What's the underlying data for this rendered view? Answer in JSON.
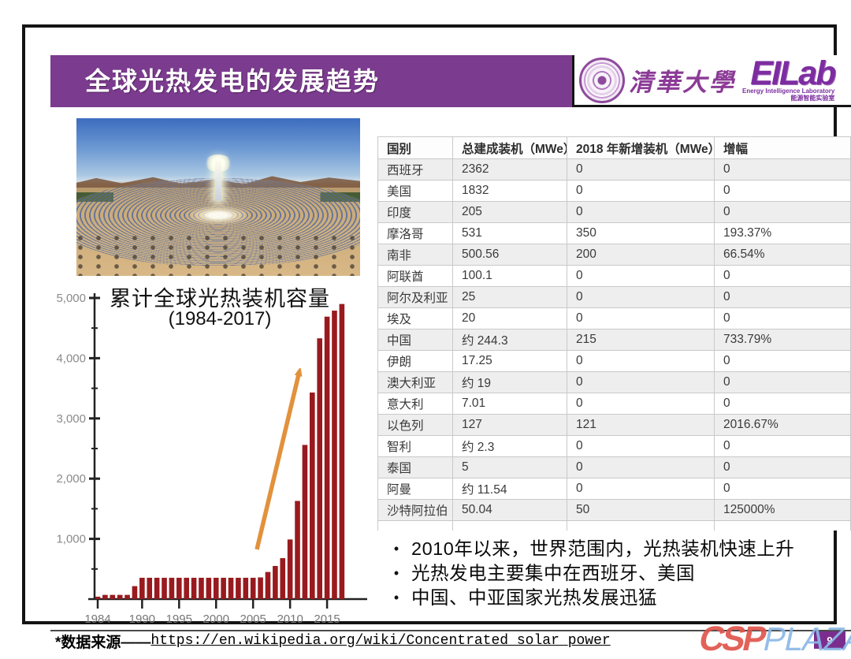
{
  "header": {
    "title": "全球光热发电的发展趋势"
  },
  "logos": {
    "university": "清華大學",
    "lab": "EILab",
    "lab_tagline": "Energy Intelligence Laboratory",
    "lab_tagline_cn": "能源智能实验室"
  },
  "chart_data": {
    "type": "bar",
    "title": "累计全球光热装机容量",
    "subtitle": "(1984-2017)",
    "years": [
      1984,
      1985,
      1986,
      1987,
      1988,
      1989,
      1990,
      1991,
      1992,
      1993,
      1994,
      1995,
      1996,
      1997,
      1998,
      1999,
      2000,
      2001,
      2002,
      2003,
      2004,
      2005,
      2006,
      2007,
      2008,
      2009,
      2010,
      2011,
      2012,
      2013,
      2014,
      2015,
      2016,
      2017
    ],
    "values": [
      40,
      70,
      70,
      70,
      70,
      215,
      354,
      354,
      354,
      354,
      354,
      354,
      354,
      354,
      354,
      354,
      354,
      354,
      354,
      354,
      354,
      354,
      360,
      450,
      550,
      680,
      990,
      1630,
      2560,
      3430,
      4330,
      4690,
      4790,
      4900
    ],
    "ylim": [
      0,
      5000
    ],
    "ytick_labels": [
      "1,000",
      "2,000",
      "3,000",
      "4,000",
      "5,000"
    ],
    "xticks": [
      1984,
      1990,
      1995,
      2000,
      2005,
      2010,
      2015
    ],
    "xlabel": "",
    "ylabel": "",
    "grid": false,
    "legend": "none",
    "bar_color": "#991a1e",
    "arrow_color": "#e2913c"
  },
  "table": {
    "headers": [
      "国别",
      "总建成装机（MWe）",
      "2018 年新增装机（MWe）",
      "增幅"
    ],
    "rows": [
      [
        "西班牙",
        "2362",
        "0",
        "0"
      ],
      [
        "美国",
        "1832",
        "0",
        "0"
      ],
      [
        "印度",
        "205",
        "0",
        "0"
      ],
      [
        "摩洛哥",
        "531",
        "350",
        "193.37%"
      ],
      [
        "南非",
        "500.56",
        "200",
        "66.54%"
      ],
      [
        "阿联酋",
        "100.1",
        "0",
        "0"
      ],
      [
        "阿尔及利亚",
        "25",
        "0",
        "0"
      ],
      [
        "埃及",
        "20",
        "0",
        "0"
      ],
      [
        "中国",
        "约 244.3",
        "215",
        "733.79%"
      ],
      [
        "伊朗",
        "17.25",
        "0",
        "0"
      ],
      [
        "澳大利亚",
        "约 19",
        "0",
        "0"
      ],
      [
        "意大利",
        "7.01",
        "0",
        "0"
      ],
      [
        "以色列",
        "127",
        "121",
        "2016.67%"
      ],
      [
        "智利",
        "约 2.3",
        "0",
        "0"
      ],
      [
        "泰国",
        "5",
        "0",
        "0"
      ],
      [
        "阿曼",
        "约 11.54",
        "0",
        "0"
      ],
      [
        "沙特阿拉伯",
        "50.04",
        "50",
        "125000%"
      ]
    ]
  },
  "bullets": [
    "2010年以来，世界范围内，光热装机快速上升",
    "光热发电主要集中在西班牙、美国",
    "中国、中亚国家光热发展迅猛"
  ],
  "footer": {
    "prefix": "*数据来源——",
    "url": "https://en.wikipedia.org/wiki/Concentrated_solar_power"
  },
  "page": {
    "number": "9"
  },
  "watermark": {
    "csp": "CSP",
    "plaza": "PLAZA"
  },
  "colors": {
    "banner_purple": "#7b3b8e",
    "bar_red": "#991a1e",
    "arrow_orange": "#e2913c",
    "page_box_purple": "#7b2d8e",
    "watermark_red": "#e0554b",
    "watermark_blue": "#8cb9e7"
  }
}
